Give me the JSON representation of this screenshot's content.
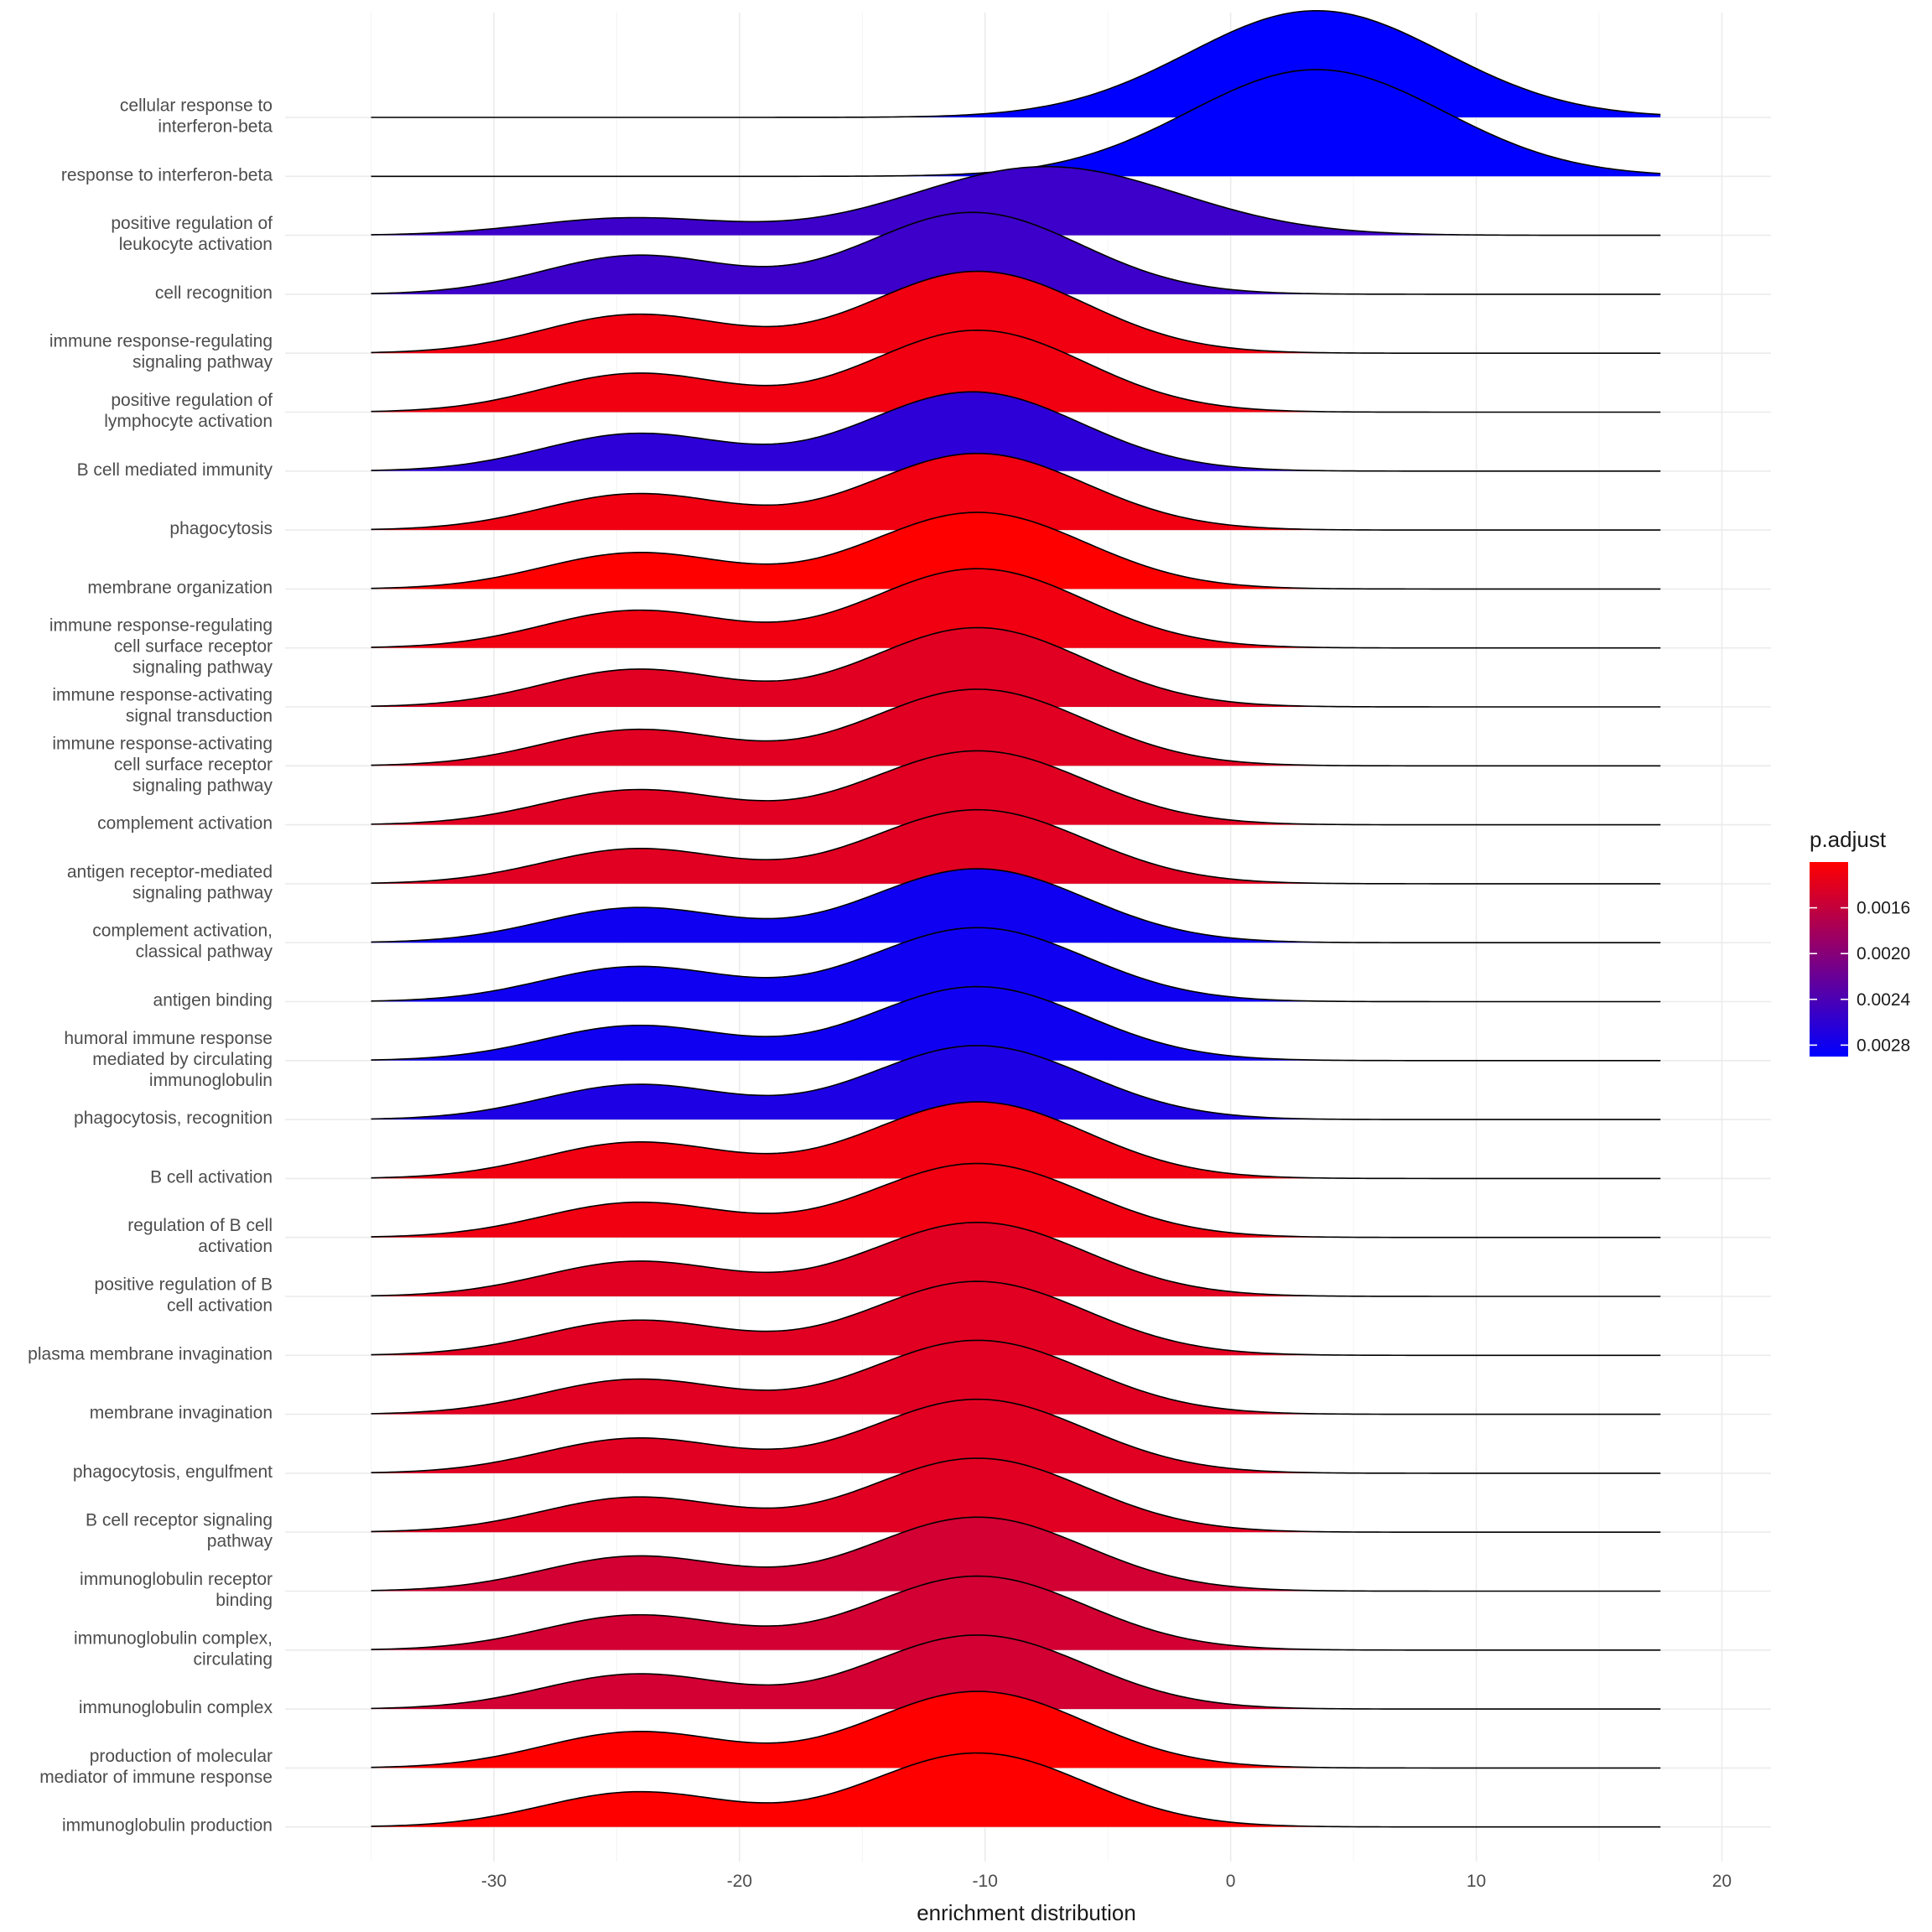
{
  "chart_data": {
    "type": "ridgeline",
    "xlabel": "enrichment distribution",
    "xlim": [
      -38.5,
      22.0
    ],
    "x_ticks": [
      -30,
      -20,
      -10,
      0,
      10,
      20
    ],
    "x_tick_labels": [
      "-30",
      "-20",
      "-10",
      "0",
      "10",
      "20"
    ],
    "grid": true,
    "legend": {
      "title": "p.adjust",
      "position": "right",
      "range": [
        0.0012,
        0.0029
      ],
      "ticks": [
        0.0016,
        0.002,
        0.0024,
        0.0028
      ],
      "tick_labels": [
        "0.0016",
        "0.0020",
        "0.0024",
        "0.0028"
      ],
      "low_color": "#ff0000",
      "high_color": "#0000ff"
    },
    "series": [
      {
        "name": "cellular response to\ninterferon-beta",
        "p_adjust": 0.00295,
        "peak_x": 3.5,
        "peak_height": 2.02
      },
      {
        "name": "response to interferon-beta",
        "p_adjust": 0.00295,
        "peak_x": 3.5,
        "peak_height": 2.02
      },
      {
        "name": "positive regulation of\nleukocyte activation",
        "p_adjust": 0.0025,
        "peak_x": -7.5,
        "peak_height": 1.3
      },
      {
        "name": "cell recognition",
        "p_adjust": 0.0025,
        "peak_x": -10.5,
        "peak_height": 1.55
      },
      {
        "name": "immune response-regulating\nsignaling pathway",
        "p_adjust": 0.0013,
        "peak_x": -10.3,
        "peak_height": 1.55
      },
      {
        "name": "positive regulation of\nlymphocyte activation",
        "p_adjust": 0.0013,
        "peak_x": -10.3,
        "peak_height": 1.55
      },
      {
        "name": "B cell mediated immunity",
        "p_adjust": 0.0026,
        "peak_x": -10.5,
        "peak_height": 1.5
      },
      {
        "name": "phagocytosis",
        "p_adjust": 0.0013,
        "peak_x": -10.3,
        "peak_height": 1.45
      },
      {
        "name": "membrane organization",
        "p_adjust": 0.0012,
        "peak_x": -10.3,
        "peak_height": 1.45
      },
      {
        "name": "immune response-regulating\ncell surface receptor\nsignaling pathway",
        "p_adjust": 0.0013,
        "peak_x": -10.3,
        "peak_height": 1.5
      },
      {
        "name": "immune response-activating\nsignal transduction",
        "p_adjust": 0.0014,
        "peak_x": -10.3,
        "peak_height": 1.5
      },
      {
        "name": "immune response-activating\ncell surface receptor\nsignaling pathway",
        "p_adjust": 0.0014,
        "peak_x": -10.3,
        "peak_height": 1.45
      },
      {
        "name": "complement activation",
        "p_adjust": 0.0014,
        "peak_x": -10.3,
        "peak_height": 1.4
      },
      {
        "name": "antigen receptor-mediated\nsignaling pathway",
        "p_adjust": 0.0014,
        "peak_x": -10.3,
        "peak_height": 1.4
      },
      {
        "name": "complement activation,\nclassical pathway",
        "p_adjust": 0.0028,
        "peak_x": -10.3,
        "peak_height": 1.4
      },
      {
        "name": "antigen binding",
        "p_adjust": 0.0028,
        "peak_x": -10.3,
        "peak_height": 1.4
      },
      {
        "name": "humoral immune response\nmediated by circulating\nimmunoglobulin",
        "p_adjust": 0.0028,
        "peak_x": -10.3,
        "peak_height": 1.4
      },
      {
        "name": "phagocytosis, recognition",
        "p_adjust": 0.0027,
        "peak_x": -10.3,
        "peak_height": 1.4
      },
      {
        "name": "B cell activation",
        "p_adjust": 0.0013,
        "peak_x": -10.3,
        "peak_height": 1.45
      },
      {
        "name": "regulation of B cell\nactivation",
        "p_adjust": 0.0013,
        "peak_x": -10.3,
        "peak_height": 1.4
      },
      {
        "name": "positive regulation of B\ncell activation",
        "p_adjust": 0.0014,
        "peak_x": -10.3,
        "peak_height": 1.4
      },
      {
        "name": "plasma membrane invagination",
        "p_adjust": 0.0014,
        "peak_x": -10.3,
        "peak_height": 1.4
      },
      {
        "name": "membrane invagination",
        "p_adjust": 0.0014,
        "peak_x": -10.3,
        "peak_height": 1.4
      },
      {
        "name": "phagocytosis, engulfment",
        "p_adjust": 0.0014,
        "peak_x": -10.3,
        "peak_height": 1.4
      },
      {
        "name": "B cell receptor signaling\npathway",
        "p_adjust": 0.0014,
        "peak_x": -10.3,
        "peak_height": 1.4
      },
      {
        "name": "immunoglobulin receptor\nbinding",
        "p_adjust": 0.0015,
        "peak_x": -10.3,
        "peak_height": 1.4
      },
      {
        "name": "immunoglobulin complex,\ncirculating",
        "p_adjust": 0.0015,
        "peak_x": -10.3,
        "peak_height": 1.4
      },
      {
        "name": "immunoglobulin complex",
        "p_adjust": 0.0015,
        "peak_x": -10.3,
        "peak_height": 1.4
      },
      {
        "name": "production of molecular\nmediator of immune response",
        "p_adjust": 0.0012,
        "peak_x": -10.3,
        "peak_height": 1.45
      },
      {
        "name": "immunoglobulin production",
        "p_adjust": 0.0012,
        "peak_x": -10.3,
        "peak_height": 1.4
      }
    ]
  }
}
